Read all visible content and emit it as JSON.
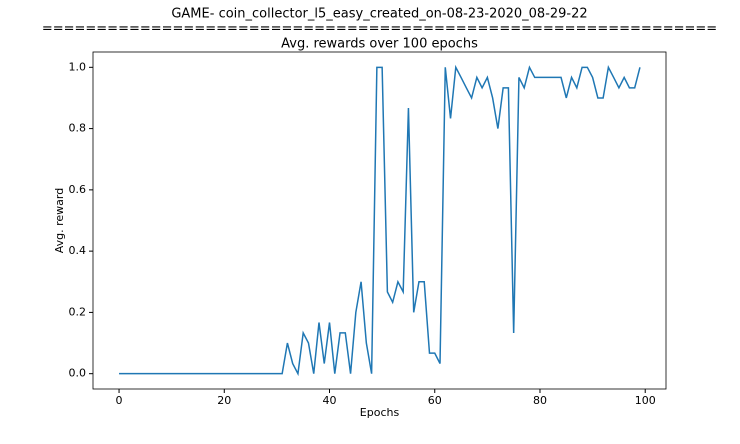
{
  "chart_data": {
    "type": "line",
    "title": [
      "GAME- coin_collector_l5_easy_created_on-08-23-2020_08-29-22",
      "==============================================================",
      "Avg. rewards over 100 epochs"
    ],
    "xlabel": "Epochs",
    "ylabel": "Avg. reward",
    "x": [
      0,
      1,
      2,
      3,
      4,
      5,
      6,
      7,
      8,
      9,
      10,
      11,
      12,
      13,
      14,
      15,
      16,
      17,
      18,
      19,
      20,
      21,
      22,
      23,
      24,
      25,
      26,
      27,
      28,
      29,
      30,
      31,
      32,
      33,
      34,
      35,
      36,
      37,
      38,
      39,
      40,
      41,
      42,
      43,
      44,
      45,
      46,
      47,
      48,
      49,
      50,
      51,
      52,
      53,
      54,
      55,
      56,
      57,
      58,
      59,
      60,
      61,
      62,
      63,
      64,
      65,
      66,
      67,
      68,
      69,
      70,
      71,
      72,
      73,
      74,
      75,
      76,
      77,
      78,
      79,
      80,
      81,
      82,
      83,
      84,
      85,
      86,
      87,
      88,
      89,
      90,
      91,
      92,
      93,
      94,
      95,
      96,
      97,
      98,
      99
    ],
    "series": [
      {
        "name": "Avg. reward",
        "color": "#1f77b4",
        "values": [
          0,
          0,
          0,
          0,
          0,
          0,
          0,
          0,
          0,
          0,
          0,
          0,
          0,
          0,
          0,
          0,
          0,
          0,
          0,
          0,
          0,
          0,
          0,
          0,
          0,
          0,
          0,
          0,
          0,
          0,
          0,
          0,
          0.1,
          0.033,
          0,
          0.133,
          0.1,
          0,
          0.167,
          0.033,
          0.167,
          0,
          0.133,
          0.133,
          0,
          0.2,
          0.3,
          0.1,
          0,
          1.0,
          1.0,
          0.267,
          0.233,
          0.3,
          0.267,
          0.867,
          0.2,
          0.3,
          0.3,
          0.067,
          0.067,
          0.033,
          1.0,
          0.833,
          1.0,
          0.967,
          0.933,
          0.9,
          0.967,
          0.933,
          0.967,
          0.9,
          0.8,
          0.933,
          0.933,
          0.133,
          0.967,
          0.933,
          1.0,
          0.967,
          0.967,
          0.967,
          0.967,
          0.967,
          0.967,
          0.9,
          0.967,
          0.933,
          1.0,
          1.0,
          0.967,
          0.9,
          0.9,
          1.0,
          0.967,
          0.933,
          0.967,
          0.933,
          0.933,
          1.0
        ]
      }
    ],
    "xlim": [
      -4.95,
      103.95
    ],
    "ylim": [
      -0.05,
      1.05
    ],
    "xticks": [
      0,
      20,
      40,
      60,
      80,
      100
    ],
    "yticks": [
      {
        "value": 0,
        "label": "0.0"
      },
      0.2,
      0.4,
      0.6,
      0.8,
      {
        "value": 1,
        "label": "1.0"
      }
    ],
    "grid": false
  }
}
